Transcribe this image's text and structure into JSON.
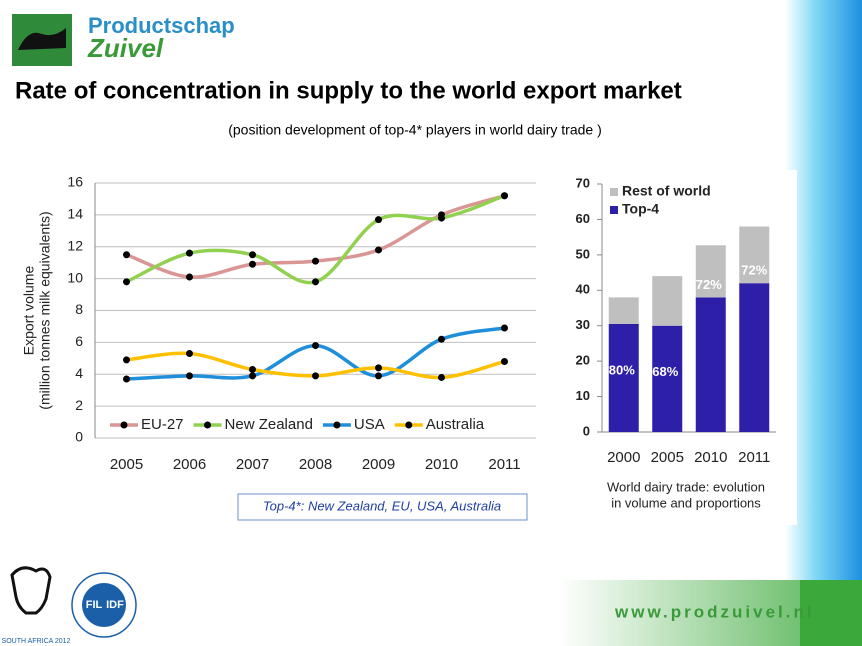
{
  "header": {
    "logo_top": "Productschap",
    "logo_bottom": "Zuivel",
    "title": "Rate of concentration in supply to the world export market",
    "subtitle": "(position development  of top-4* players in world dairy trade )"
  },
  "chart_data": [
    {
      "type": "line",
      "ylabel": [
        "Export volume",
        "(million tonnes milk equivalents)"
      ],
      "categories": [
        "2005",
        "2006",
        "2007",
        "2008",
        "2009",
        "2010",
        "2011"
      ],
      "ylim": [
        0,
        16
      ],
      "yticks": [
        0,
        2,
        4,
        6,
        8,
        10,
        12,
        14,
        16
      ],
      "grid": true,
      "legend": "bottom",
      "series": [
        {
          "name": "EU-27",
          "color": "#d99694",
          "values": [
            11.5,
            10.1,
            10.9,
            11.1,
            11.8,
            14.0,
            15.2
          ]
        },
        {
          "name": "New Zealand",
          "color": "#92d050",
          "values": [
            9.8,
            11.6,
            11.5,
            9.8,
            13.7,
            13.8,
            15.2
          ]
        },
        {
          "name": "USA",
          "color": "#1f8fdc",
          "values": [
            3.7,
            3.9,
            3.9,
            5.8,
            3.9,
            6.2,
            6.9
          ]
        },
        {
          "name": "Australia",
          "color": "#ffc000",
          "values": [
            4.9,
            5.3,
            4.3,
            3.9,
            4.4,
            3.8,
            4.8
          ]
        }
      ]
    },
    {
      "type": "stacked_bar",
      "caption": [
        "World dairy trade: evolution",
        "in volume and proportions"
      ],
      "categories": [
        "2000",
        "2005",
        "2010",
        "2011"
      ],
      "ylim": [
        0,
        70
      ],
      "yticks": [
        0,
        10,
        20,
        30,
        40,
        50,
        60,
        70
      ],
      "legend": "top-left",
      "series": [
        {
          "name": "Top-4",
          "color": "#2e1fa8",
          "values": [
            30.5,
            30,
            38,
            42
          ]
        },
        {
          "name": "Rest of world",
          "color": "#bfbfbf",
          "values": [
            7.5,
            14,
            14.7,
            16
          ]
        }
      ],
      "annotations": [
        "80%",
        "68%",
        "72%",
        "72%"
      ]
    }
  ],
  "footnote": "Top-4*: New Zealand, EU, USA, Australia",
  "footer": {
    "url": "www.prodzuivel.nl",
    "event": "SOUTH AFRICA 2012",
    "fil": "FIL",
    "idf": "IDF"
  }
}
